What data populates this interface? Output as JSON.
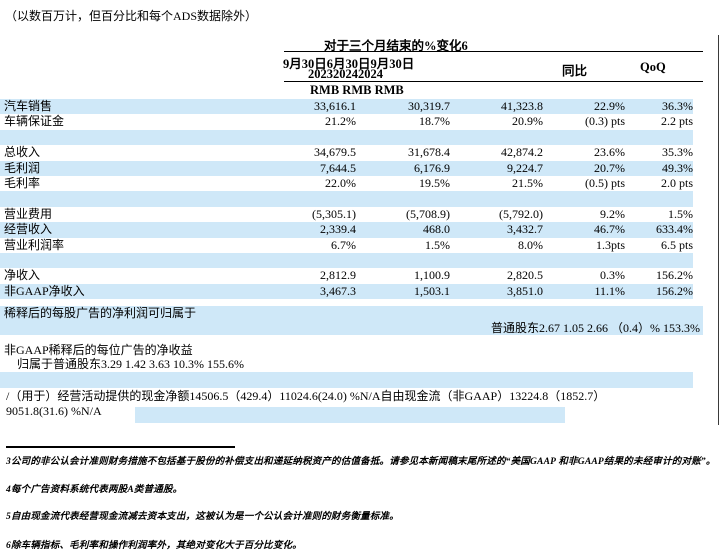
{
  "page": {
    "intro_note": "（以数百万计，但百分比和每个ADS数据除外）",
    "colors": {
      "row_highlight": "#cfe8f8",
      "text": "#000000",
      "rule": "#000000"
    }
  },
  "table": {
    "span_header": "对于三个月结束的%变化6",
    "period_line1": "9月30日6月30日9月30日",
    "period_line2": "202320242024",
    "yoy_header": "同比",
    "qoq_header": "QoQ",
    "currency_header": "RMB RMB RMB",
    "rows": [
      {
        "label": "汽车销售",
        "c1": "33,616.1",
        "c2": "30,319.7",
        "c3": "41,323.8",
        "c4": "22.9%",
        "c5": "36.3%",
        "shaded": true
      },
      {
        "label": "车辆保证金",
        "c1": "21.2%",
        "c2": "18.7%",
        "c3": "20.9%",
        "c4": "(0.3) pts",
        "c5": "2.2 pts",
        "shaded": false
      },
      {
        "spacer": true,
        "shaded": true
      },
      {
        "label": "总收入",
        "c1": "34,679.5",
        "c2": "31,678.4",
        "c3": "42,874.2",
        "c4": "23.6%",
        "c5": "35.3%",
        "shaded": false
      },
      {
        "label": "毛利润",
        "c1": "7,644.5",
        "c2": "6,176.9",
        "c3": "9,224.7",
        "c4": "20.7%",
        "c5": "49.3%",
        "shaded": true
      },
      {
        "label": "毛利率",
        "c1": "22.0%",
        "c2": "19.5%",
        "c3": "21.5%",
        "c4": "(0.5) pts",
        "c5": "2.0 pts",
        "shaded": false
      },
      {
        "spacer": true,
        "shaded": true
      },
      {
        "label": "营业费用",
        "c1": "(5,305.1)",
        "c2": "(5,708.9)",
        "c3": "(5,792.0)",
        "c4": "9.2%",
        "c5": "1.5%",
        "shaded": false
      },
      {
        "label": "经营收入",
        "c1": "2,339.4",
        "c2": "468.0",
        "c3": "3,432.7",
        "c4": "46.7%",
        "c5": "633.4%",
        "shaded": true
      },
      {
        "label": "营业利润率",
        "c1": "6.7%",
        "c2": "1.5%",
        "c3": "8.0%",
        "c4": "1.3pts",
        "c5": "6.5 pts",
        "shaded": false
      },
      {
        "spacer": true,
        "shaded": true
      },
      {
        "label": "净收入",
        "c1": "2,812.9",
        "c2": "1,100.9",
        "c3": "2,820.5",
        "c4": "0.3%",
        "c5": "156.2%",
        "shaded": false
      },
      {
        "label": "非GAAP净收入",
        "c1": "3,467.3",
        "c2": "1,503.1",
        "c3": "3,851.0",
        "c4": "11.1%",
        "c5": "156.2%",
        "shaded": true
      }
    ],
    "per_ads": {
      "diluted_label": "稀释后的每股广告的净利润可归属于",
      "diluted_values": "普通股东2.67 1.05 2.66 （0.4）% 153.3%",
      "non_gaap_label": "非GAAP稀释后的每位广告的净收益",
      "non_gaap_values": "归属于普通股东3.29 1.42 3.63 10.3% 155.6%"
    },
    "cash_flow": {
      "line1": "/（用于）经营活动提供的现金净额14506.5（429.4）11024.6(24.0) %N/A自由现金流（非GAAP）13224.8（1852.7）",
      "line2": "9051.8(31.6) %N/A"
    }
  },
  "footnotes": [
    "3公司的非公认会计准则财务措施不包括基于股份的补偿支出和递延纳税资产的估值备抵。请参见本新闻稿末尾所述的“美国GAAP 和非GAAP结果的未经审计的对账”。",
    "4每个广告资料系统代表两股A类普通股。",
    "5自由现金流代表经营现金流减去资本支出，这被认为是一个公认会计准则的财务衡量标准。",
    "6除车辆指标、毛利率和操作利润率外，其绝对变化大于百分比变化。"
  ]
}
